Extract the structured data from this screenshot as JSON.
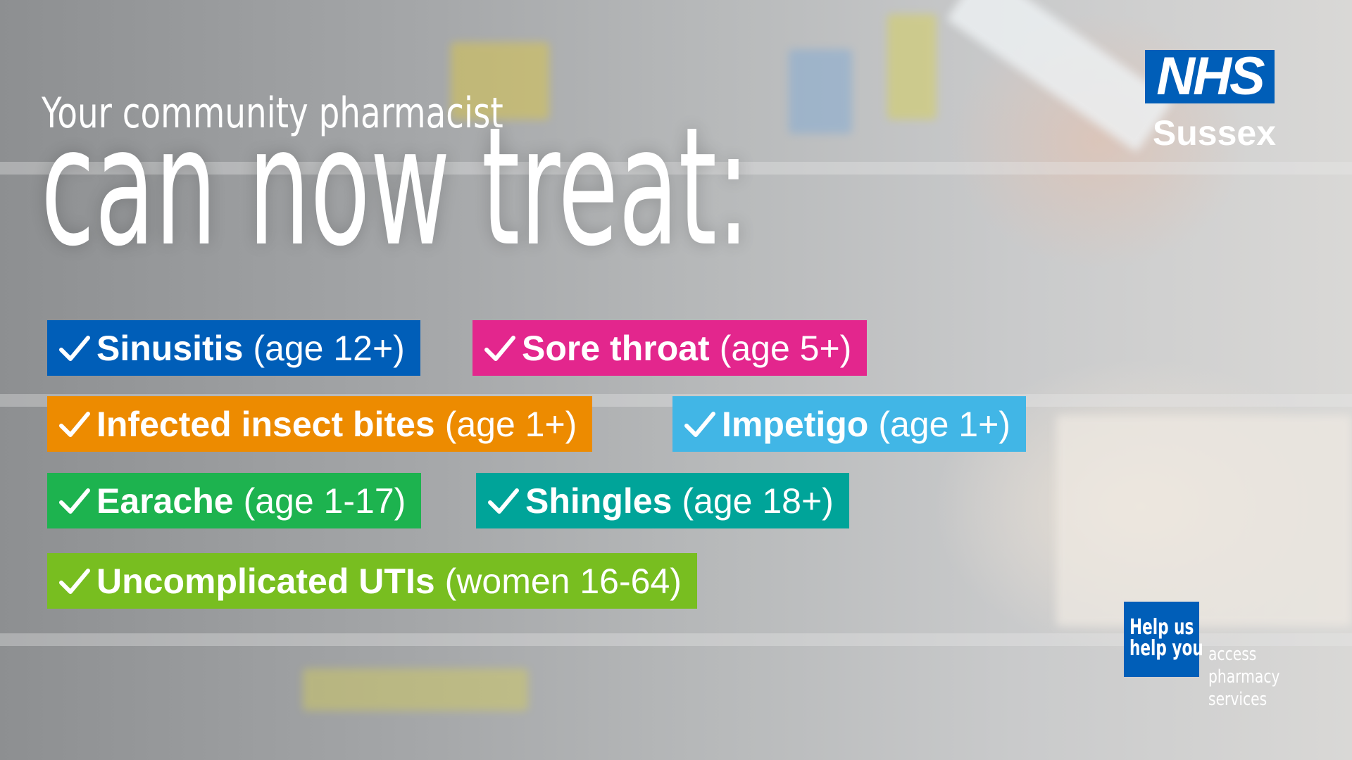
{
  "header": {
    "subtitle": "Your community pharmacist",
    "title": "can now treat:"
  },
  "items": [
    {
      "name": "Sinusitis",
      "detail": "(age 12+)"
    },
    {
      "name": "Sore throat",
      "detail": "(age 5+)"
    },
    {
      "name": "Infected insect bites",
      "detail": "(age 1+)"
    },
    {
      "name": "Impetigo",
      "detail": "(age 1+)"
    },
    {
      "name": "Earache",
      "detail": "(age 1-17)"
    },
    {
      "name": "Shingles",
      "detail": "(age 18+)"
    },
    {
      "name": "Uncomplicated UTIs",
      "detail": "(women 16-64)"
    }
  ],
  "logo": {
    "mark": "NHS",
    "region": "Sussex"
  },
  "badge": {
    "lines": [
      "Help us",
      "help you"
    ],
    "caption": [
      "access",
      "pharmacy",
      "services"
    ]
  }
}
